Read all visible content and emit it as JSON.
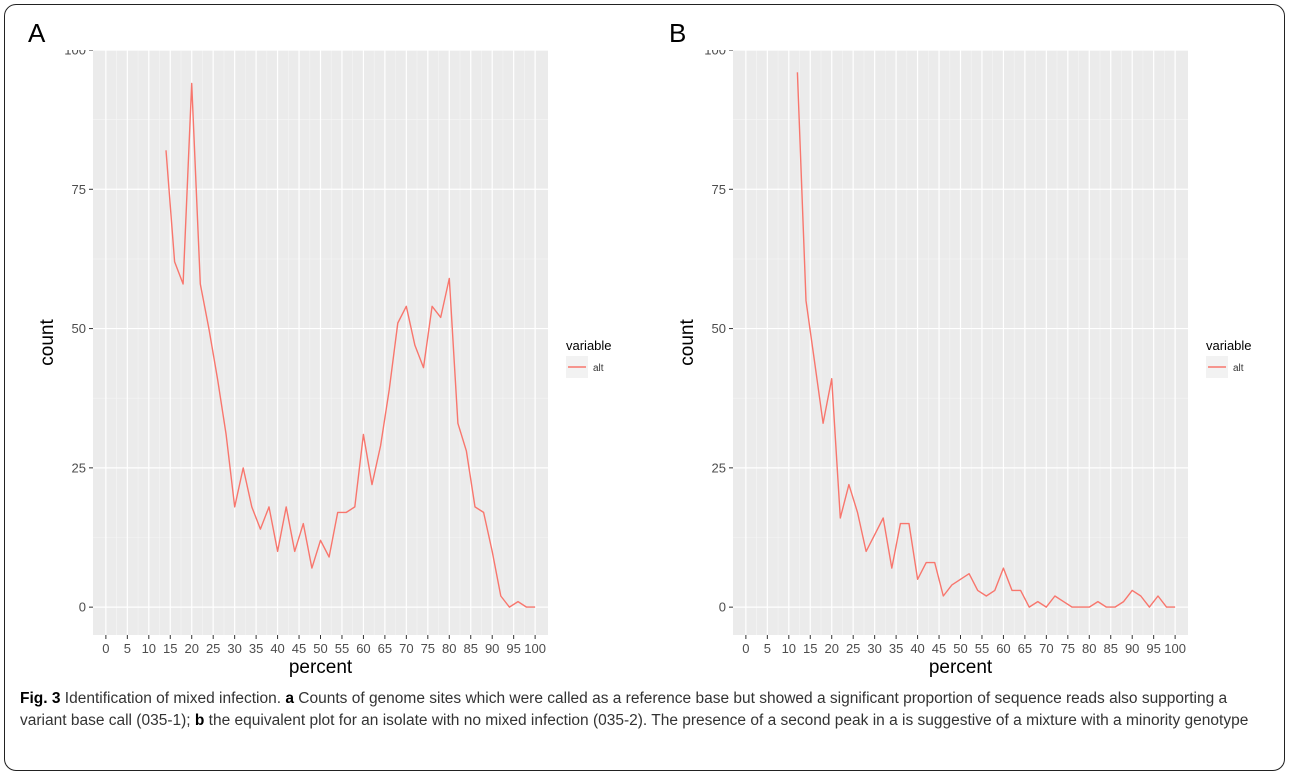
{
  "panels": [
    {
      "letter": "A",
      "legend_title": "variable",
      "legend_label": "alt",
      "chart_data": {
        "type": "line",
        "title": "",
        "xlabel": "percent",
        "ylabel": "count",
        "xlim": [
          -3,
          103
        ],
        "ylim": [
          -5,
          100
        ],
        "xticks": [
          0,
          5,
          10,
          15,
          20,
          25,
          30,
          35,
          40,
          45,
          50,
          55,
          60,
          65,
          70,
          75,
          80,
          85,
          90,
          95,
          100
        ],
        "yticks": [
          0,
          25,
          50,
          75,
          100
        ],
        "grid": true,
        "legend": "right",
        "series": [
          {
            "name": "alt",
            "color": "#F8766D",
            "x": [
              14,
              16,
              18,
              20,
              22,
              24,
              26,
              28,
              30,
              32,
              34,
              36,
              38,
              40,
              42,
              44,
              46,
              48,
              50,
              52,
              54,
              56,
              58,
              60,
              62,
              64,
              66,
              68,
              70,
              72,
              74,
              76,
              78,
              80,
              82,
              84,
              86,
              88,
              90,
              92,
              94,
              96,
              98,
              100
            ],
            "y": [
              82,
              62,
              58,
              94,
              58,
              50,
              41,
              31,
              18,
              25,
              18,
              14,
              18,
              10,
              18,
              10,
              15,
              7,
              12,
              9,
              17,
              17,
              18,
              31,
              22,
              29,
              39,
              51,
              54,
              47,
              43,
              54,
              52,
              59,
              33,
              28,
              18,
              17,
              10,
              2,
              0,
              1,
              0,
              0
            ]
          }
        ]
      }
    },
    {
      "letter": "B",
      "legend_title": "variable",
      "legend_label": "alt",
      "chart_data": {
        "type": "line",
        "title": "",
        "xlabel": "percent",
        "ylabel": "count",
        "xlim": [
          -3,
          103
        ],
        "ylim": [
          -5,
          100
        ],
        "xticks": [
          0,
          5,
          10,
          15,
          20,
          25,
          30,
          35,
          40,
          45,
          50,
          55,
          60,
          65,
          70,
          75,
          80,
          85,
          90,
          95,
          100
        ],
        "yticks": [
          0,
          25,
          50,
          75,
          100
        ],
        "grid": true,
        "legend": "right",
        "series": [
          {
            "name": "alt",
            "color": "#F8766D",
            "x": [
              12,
              14,
              16,
              18,
              20,
              22,
              24,
              26,
              28,
              30,
              32,
              34,
              36,
              38,
              40,
              42,
              44,
              46,
              48,
              50,
              52,
              54,
              56,
              58,
              60,
              62,
              64,
              66,
              68,
              70,
              72,
              74,
              76,
              78,
              80,
              82,
              84,
              86,
              88,
              90,
              92,
              94,
              96,
              98,
              100
            ],
            "y": [
              96,
              55,
              44,
              33,
              41,
              16,
              22,
              17,
              10,
              13,
              16,
              7,
              15,
              15,
              5,
              8,
              8,
              2,
              4,
              5,
              6,
              3,
              2,
              3,
              7,
              3,
              3,
              0,
              1,
              0,
              2,
              1,
              0,
              0,
              0,
              1,
              0,
              0,
              1,
              3,
              2,
              0,
              2,
              0,
              0
            ]
          }
        ]
      }
    }
  ],
  "caption": {
    "fig_label": "Fig. 3",
    "intro": " Identification of mixed infection. ",
    "a_label": "a",
    "a_text": " Counts of genome sites which were called as a reference base but showed a significant proportion of sequence reads also supporting a variant base call (035-1); ",
    "b_label": "b",
    "b_text": " the equivalent plot for an isolate with no mixed infection (035-2). The presence of a second peak in a is suggestive of a mixture with a minority genotype"
  }
}
